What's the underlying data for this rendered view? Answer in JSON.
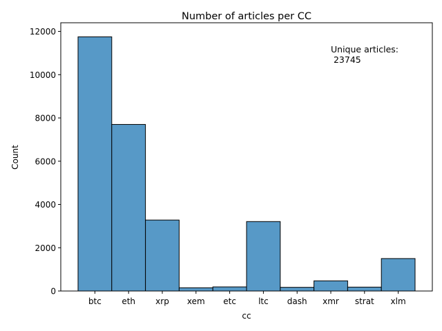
{
  "chart_data": {
    "type": "bar",
    "title": "Number of articles per CC",
    "xlabel": "cc",
    "ylabel": "Count",
    "categories": [
      "btc",
      "eth",
      "xrp",
      "xem",
      "etc",
      "ltc",
      "dash",
      "xmr",
      "strat",
      "xlm"
    ],
    "values": [
      11750,
      7700,
      3280,
      150,
      190,
      3210,
      170,
      470,
      180,
      1500
    ],
    "ylim": [
      0,
      12400
    ],
    "yticks": [
      0,
      2000,
      4000,
      6000,
      8000,
      10000,
      12000
    ],
    "ytick_labels": [
      "0",
      "2000",
      "4000",
      "6000",
      "8000",
      "10000",
      "12000"
    ],
    "grid": false,
    "bar_color": "#5799c7",
    "bar_edge_color": "#000000",
    "annotation": {
      "line1": "Unique articles:",
      "line2": " 23745"
    }
  }
}
